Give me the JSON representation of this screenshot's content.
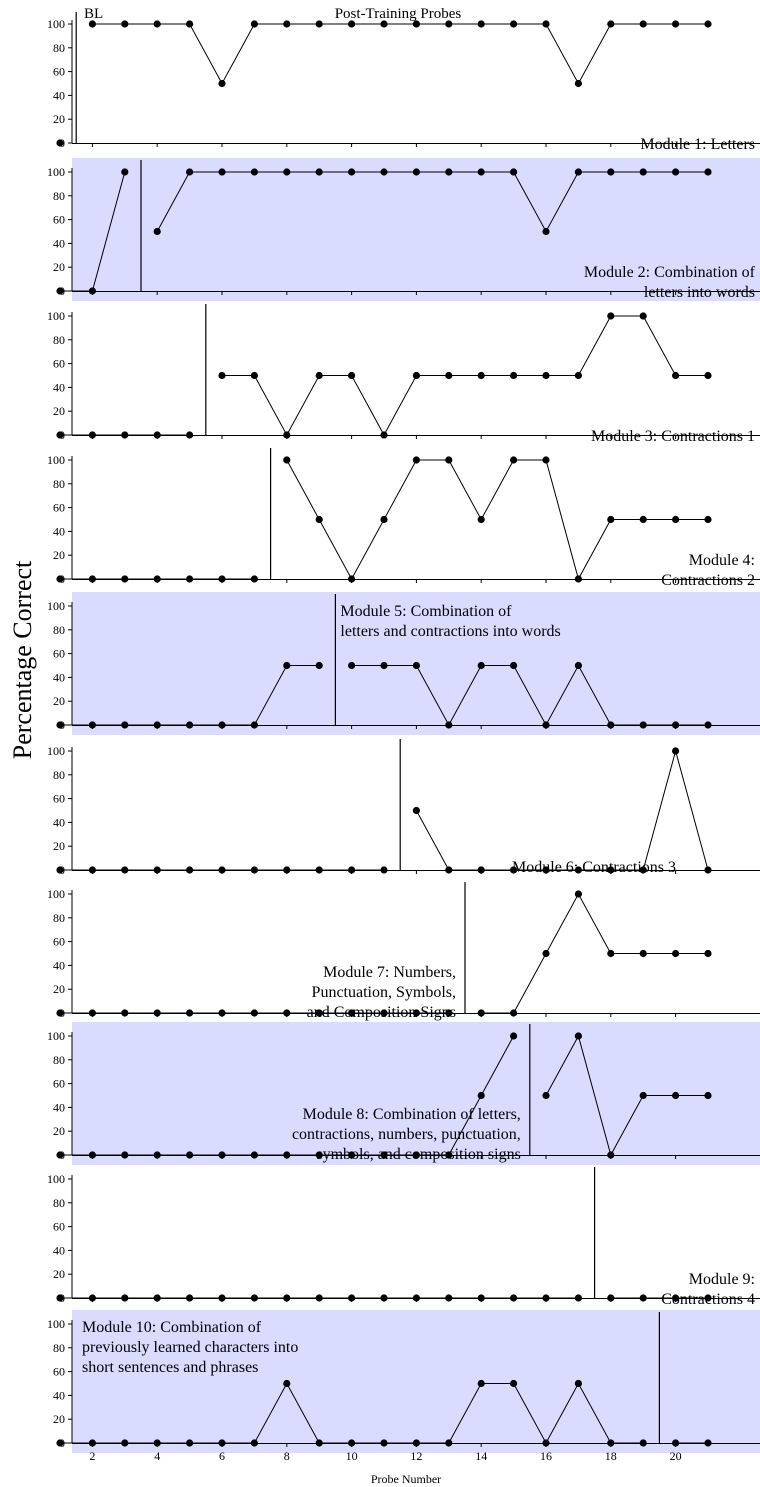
{
  "chart_data": {
    "type": "line",
    "title": "",
    "ylabel": "Percentage Correct",
    "xlabel": "Probe Number",
    "top_labels": {
      "baseline": "BL",
      "post": "Post-Training Probes"
    },
    "x_ticks": [
      2,
      4,
      6,
      8,
      10,
      12,
      14,
      16,
      18,
      20
    ],
    "xlim": [
      0.5,
      21.8
    ],
    "y_ticks": [
      0,
      20,
      40,
      60,
      80,
      100
    ],
    "ylim": [
      0,
      100
    ],
    "grid": false,
    "panels": [
      {
        "label_lines": [
          "Module 1: Letters"
        ],
        "label_align": "end",
        "label_pos": "bottom-right",
        "shaded": false,
        "phase_change_after": 1,
        "segments": [
          [
            [
              1,
              0
            ]
          ],
          [
            [
              2,
              100
            ],
            [
              3,
              100
            ],
            [
              4,
              100
            ],
            [
              5,
              100
            ],
            [
              6,
              50
            ],
            [
              7,
              100
            ],
            [
              8,
              100
            ],
            [
              9,
              100
            ],
            [
              10,
              100
            ],
            [
              11,
              100
            ],
            [
              12,
              100
            ],
            [
              13,
              100
            ],
            [
              14,
              100
            ],
            [
              15,
              100
            ],
            [
              16,
              100
            ],
            [
              17,
              50
            ],
            [
              18,
              100
            ],
            [
              19,
              100
            ],
            [
              20,
              100
            ],
            [
              21,
              100
            ]
          ]
        ]
      },
      {
        "label_lines": [
          "Module 2: Combination of",
          "letters into words"
        ],
        "label_align": "end",
        "label_pos": "bottom-right",
        "shaded": true,
        "phase_change_after": 3,
        "segments": [
          [
            [
              1,
              0
            ],
            [
              2,
              0
            ],
            [
              3,
              100
            ]
          ],
          [
            [
              4,
              50
            ],
            [
              5,
              100
            ],
            [
              6,
              100
            ],
            [
              7,
              100
            ],
            [
              8,
              100
            ],
            [
              9,
              100
            ],
            [
              10,
              100
            ],
            [
              11,
              100
            ],
            [
              12,
              100
            ],
            [
              13,
              100
            ],
            [
              14,
              100
            ],
            [
              15,
              100
            ],
            [
              16,
              50
            ],
            [
              17,
              100
            ],
            [
              18,
              100
            ],
            [
              19,
              100
            ],
            [
              20,
              100
            ],
            [
              21,
              100
            ]
          ]
        ]
      },
      {
        "label_lines": [
          "Module 3: Contractions 1"
        ],
        "label_align": "end",
        "label_pos": "bottom-right",
        "shaded": false,
        "phase_change_after": 5,
        "segments": [
          [
            [
              1,
              0
            ],
            [
              2,
              0
            ],
            [
              3,
              0
            ],
            [
              4,
              0
            ],
            [
              5,
              0
            ]
          ],
          [
            [
              6,
              50
            ],
            [
              7,
              50
            ],
            [
              8,
              0
            ],
            [
              9,
              50
            ],
            [
              10,
              50
            ],
            [
              11,
              0
            ],
            [
              12,
              50
            ],
            [
              13,
              50
            ],
            [
              14,
              50
            ],
            [
              15,
              50
            ],
            [
              16,
              50
            ],
            [
              17,
              50
            ],
            [
              18,
              100
            ],
            [
              19,
              100
            ],
            [
              20,
              50
            ],
            [
              21,
              50
            ]
          ]
        ]
      },
      {
        "label_lines": [
          "Module 4:",
          "Contractions 2"
        ],
        "label_align": "end",
        "label_pos": "bottom-right",
        "shaded": false,
        "phase_change_after": 7,
        "segments": [
          [
            [
              1,
              0
            ],
            [
              2,
              0
            ],
            [
              3,
              0
            ],
            [
              4,
              0
            ],
            [
              5,
              0
            ],
            [
              6,
              0
            ],
            [
              7,
              0
            ]
          ],
          [
            [
              8,
              100
            ],
            [
              9,
              50
            ],
            [
              10,
              0
            ],
            [
              11,
              50
            ],
            [
              12,
              100
            ],
            [
              13,
              100
            ],
            [
              14,
              50
            ],
            [
              15,
              100
            ],
            [
              16,
              100
            ],
            [
              17,
              0
            ],
            [
              18,
              50
            ],
            [
              19,
              50
            ],
            [
              20,
              50
            ],
            [
              21,
              50
            ]
          ]
        ]
      },
      {
        "label_lines": [
          "Module 5: Combination of",
          "letters and contractions into words"
        ],
        "label_align": "start",
        "label_pos": "top-after-phase",
        "shaded": true,
        "phase_change_after": 9,
        "segments": [
          [
            [
              1,
              0
            ],
            [
              2,
              0
            ],
            [
              3,
              0
            ],
            [
              4,
              0
            ],
            [
              5,
              0
            ],
            [
              6,
              0
            ],
            [
              7,
              0
            ],
            [
              8,
              50
            ],
            [
              9,
              50
            ]
          ],
          [
            [
              10,
              50
            ],
            [
              11,
              50
            ],
            [
              12,
              50
            ],
            [
              13,
              0
            ],
            [
              14,
              50
            ],
            [
              15,
              50
            ],
            [
              16,
              0
            ],
            [
              17,
              50
            ],
            [
              18,
              0
            ],
            [
              19,
              0
            ],
            [
              20,
              0
            ],
            [
              21,
              0
            ]
          ]
        ]
      },
      {
        "label_lines": [
          "Module 6: Contractions 3"
        ],
        "label_align": "end",
        "label_pos": "bottom-mid",
        "shaded": false,
        "phase_change_after": 11,
        "segments": [
          [
            [
              1,
              0
            ],
            [
              2,
              0
            ],
            [
              3,
              0
            ],
            [
              4,
              0
            ],
            [
              5,
              0
            ],
            [
              6,
              0
            ],
            [
              7,
              0
            ],
            [
              8,
              0
            ],
            [
              9,
              0
            ],
            [
              10,
              0
            ],
            [
              11,
              0
            ]
          ],
          [
            [
              12,
              50
            ],
            [
              13,
              0
            ],
            [
              14,
              0
            ],
            [
              15,
              0
            ],
            [
              16,
              0
            ],
            [
              17,
              0
            ],
            [
              18,
              0
            ],
            [
              19,
              0
            ],
            [
              20,
              100
            ],
            [
              21,
              0
            ]
          ]
        ]
      },
      {
        "label_lines": [
          "Module 7: Numbers,",
          "Punctuation, Symbols,",
          "and Composition Signs"
        ],
        "label_align": "end",
        "label_pos": "bottom-before-phase",
        "shaded": false,
        "phase_change_after": 13,
        "segments": [
          [
            [
              1,
              0
            ],
            [
              2,
              0
            ],
            [
              3,
              0
            ],
            [
              4,
              0
            ],
            [
              5,
              0
            ],
            [
              6,
              0
            ],
            [
              7,
              0
            ],
            [
              8,
              0
            ],
            [
              9,
              0
            ],
            [
              10,
              0
            ],
            [
              11,
              0
            ],
            [
              12,
              0
            ],
            [
              13,
              0
            ]
          ],
          [
            [
              14,
              0
            ],
            [
              15,
              0
            ],
            [
              16,
              50
            ],
            [
              17,
              100
            ],
            [
              18,
              50
            ],
            [
              19,
              50
            ],
            [
              20,
              50
            ],
            [
              21,
              50
            ]
          ]
        ]
      },
      {
        "label_lines": [
          "Module 8: Combination of letters,",
          "contractions, numbers, punctuation,",
          "symbols, and composition signs"
        ],
        "label_align": "end",
        "label_pos": "bottom-before-phase",
        "shaded": true,
        "phase_change_after": 15,
        "segments": [
          [
            [
              1,
              0
            ],
            [
              2,
              0
            ],
            [
              3,
              0
            ],
            [
              4,
              0
            ],
            [
              5,
              0
            ],
            [
              6,
              0
            ],
            [
              7,
              0
            ],
            [
              8,
              0
            ],
            [
              9,
              0
            ],
            [
              10,
              0
            ],
            [
              11,
              0
            ],
            [
              12,
              0
            ],
            [
              13,
              0
            ],
            [
              14,
              50
            ],
            [
              15,
              100
            ]
          ],
          [
            [
              16,
              50
            ],
            [
              17,
              100
            ],
            [
              18,
              0
            ],
            [
              19,
              50
            ],
            [
              20,
              50
            ],
            [
              21,
              50
            ]
          ]
        ]
      },
      {
        "label_lines": [
          "Module 9:",
          "Contractions 4"
        ],
        "label_align": "end",
        "label_pos": "bottom-right",
        "shaded": false,
        "phase_change_after": 17,
        "segments": [
          [
            [
              1,
              0
            ],
            [
              2,
              0
            ],
            [
              3,
              0
            ],
            [
              4,
              0
            ],
            [
              5,
              0
            ],
            [
              6,
              0
            ],
            [
              7,
              0
            ],
            [
              8,
              0
            ],
            [
              9,
              0
            ],
            [
              10,
              0
            ],
            [
              11,
              0
            ],
            [
              12,
              0
            ],
            [
              13,
              0
            ],
            [
              14,
              0
            ],
            [
              15,
              0
            ],
            [
              16,
              0
            ],
            [
              17,
              0
            ]
          ],
          [
            [
              18,
              0
            ],
            [
              19,
              0
            ],
            [
              20,
              0
            ],
            [
              21,
              0
            ]
          ]
        ]
      },
      {
        "label_lines": [
          "Module 10: Combination of",
          "previously learned characters into",
          "short sentences and phrases"
        ],
        "label_align": "start",
        "label_pos": "top-left",
        "shaded": true,
        "phase_change_after": 19,
        "segments": [
          [
            [
              1,
              0
            ],
            [
              2,
              0
            ],
            [
              3,
              0
            ],
            [
              4,
              0
            ],
            [
              5,
              0
            ],
            [
              6,
              0
            ],
            [
              7,
              0
            ],
            [
              8,
              50
            ],
            [
              9,
              0
            ],
            [
              10,
              0
            ],
            [
              11,
              0
            ],
            [
              12,
              0
            ],
            [
              13,
              0
            ],
            [
              14,
              50
            ],
            [
              15,
              50
            ],
            [
              16,
              0
            ],
            [
              17,
              50
            ],
            [
              18,
              0
            ],
            [
              19,
              0
            ]
          ],
          [
            [
              20,
              0
            ],
            [
              21,
              0
            ]
          ]
        ]
      }
    ]
  },
  "colors": {
    "shade": "#d9dcff",
    "line": "#000000",
    "marker": "#000000"
  }
}
